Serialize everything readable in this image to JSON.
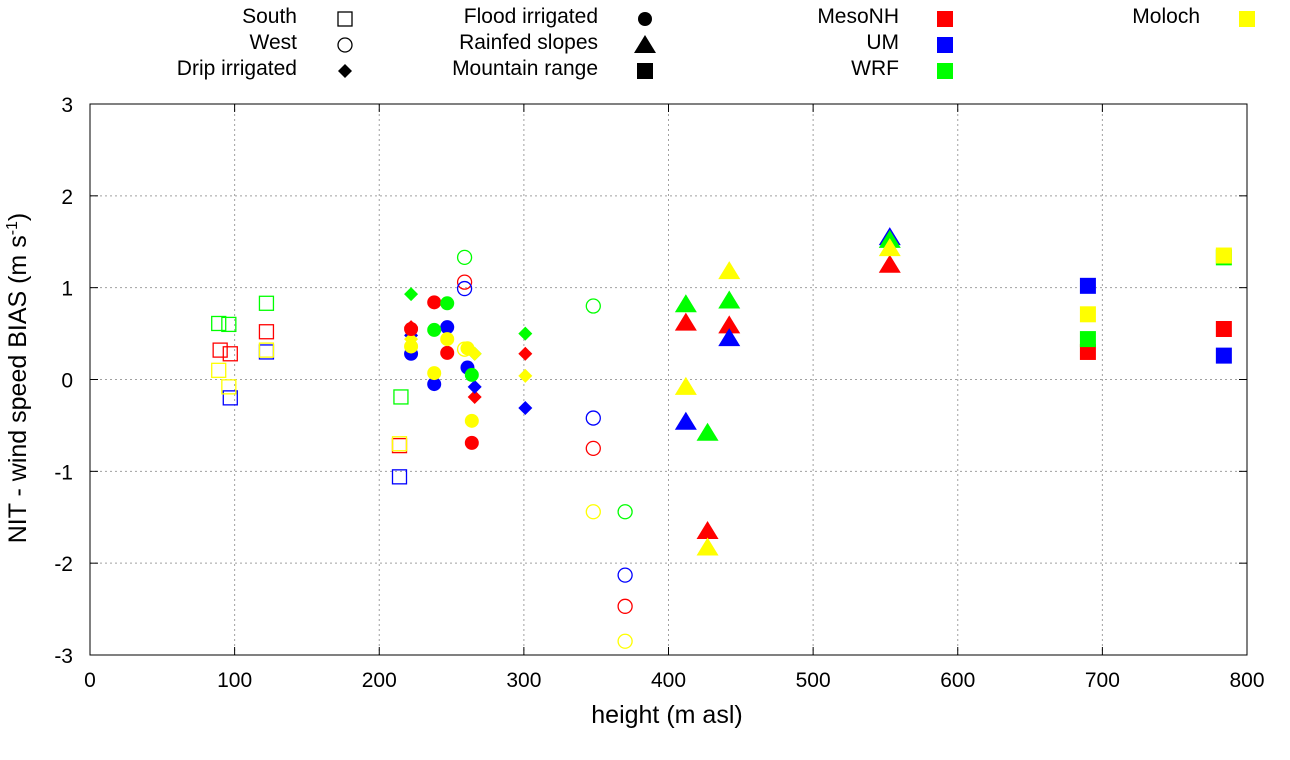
{
  "chart_data": {
    "type": "scatter",
    "title": "",
    "xlabel": "height (m asl)",
    "ylabel_main": "NIT - wind speed BIAS (m s",
    "ylabel_sup": "-1",
    "ylabel_end": ")",
    "xlim": [
      0,
      800
    ],
    "ylim": [
      -3,
      3
    ],
    "xticks": [
      0,
      100,
      200,
      300,
      400,
      500,
      600,
      700,
      800
    ],
    "yticks": [
      -3,
      -2,
      -1,
      0,
      1,
      2,
      3
    ],
    "grid": true,
    "colors": {
      "MesoNH": "#ff0000",
      "UM": "#0000ff",
      "WRF": "#00ff00",
      "Moloch": "#ffff00",
      "legend_black": "#000000"
    },
    "legend_shapes": [
      {
        "label": "South",
        "shape": "open-square"
      },
      {
        "label": "West",
        "shape": "open-circle"
      },
      {
        "label": "Drip irrigated",
        "shape": "filled-diamond"
      },
      {
        "label": "Flood irrigated",
        "shape": "filled-circle"
      },
      {
        "label": "Rainfed slopes",
        "shape": "filled-triangle"
      },
      {
        "label": "Mountain range",
        "shape": "filled-square"
      }
    ],
    "legend_models": [
      {
        "label": "MesoNH",
        "color": "#ff0000"
      },
      {
        "label": "UM",
        "color": "#0000ff"
      },
      {
        "label": "WRF",
        "color": "#00ff00"
      },
      {
        "label": "Moloch",
        "color": "#ffff00"
      }
    ],
    "series": [
      {
        "model": "MesoNH",
        "site": "South",
        "marker": "open-square",
        "x": [
          90,
          97,
          122,
          214
        ],
        "y": [
          0.32,
          0.28,
          0.52,
          -0.72
        ]
      },
      {
        "model": "UM",
        "site": "South",
        "marker": "open-square",
        "x": [
          97,
          122,
          214
        ],
        "y": [
          -0.2,
          0.3,
          -1.06
        ]
      },
      {
        "model": "WRF",
        "site": "South",
        "marker": "open-square",
        "x": [
          89,
          96,
          122,
          215
        ],
        "y": [
          0.61,
          0.6,
          0.83,
          -0.19
        ]
      },
      {
        "model": "Moloch",
        "site": "South",
        "marker": "open-square",
        "x": [
          89,
          96,
          122,
          214
        ],
        "y": [
          0.1,
          -0.08,
          0.32,
          -0.7
        ]
      },
      {
        "model": "MesoNH",
        "site": "West",
        "marker": "open-circle",
        "x": [
          259,
          348,
          370
        ],
        "y": [
          1.06,
          -0.75,
          -2.47
        ]
      },
      {
        "model": "UM",
        "site": "West",
        "marker": "open-circle",
        "x": [
          259,
          348,
          370
        ],
        "y": [
          0.99,
          -0.42,
          -2.13
        ]
      },
      {
        "model": "WRF",
        "site": "West",
        "marker": "open-circle",
        "x": [
          259,
          348,
          370
        ],
        "y": [
          1.33,
          0.8,
          -1.44
        ]
      },
      {
        "model": "Moloch",
        "site": "West",
        "marker": "open-circle",
        "x": [
          259,
          348,
          370
        ],
        "y": [
          0.33,
          -1.44,
          -2.85
        ]
      },
      {
        "model": "MesoNH",
        "site": "Drip irrigated",
        "marker": "filled-diamond",
        "x": [
          222,
          266,
          301
        ],
        "y": [
          0.57,
          -0.19,
          0.28
        ]
      },
      {
        "model": "UM",
        "site": "Drip irrigated",
        "marker": "filled-diamond",
        "x": [
          222,
          266,
          301
        ],
        "y": [
          0.48,
          -0.08,
          -0.31
        ]
      },
      {
        "model": "WRF",
        "site": "Drip irrigated",
        "marker": "filled-diamond",
        "x": [
          222,
          266,
          301
        ],
        "y": [
          0.93,
          0.28,
          0.5
        ]
      },
      {
        "model": "Moloch",
        "site": "Drip irrigated",
        "marker": "filled-diamond",
        "x": [
          222,
          266,
          301
        ],
        "y": [
          0.44,
          0.28,
          0.04
        ]
      },
      {
        "model": "MesoNH",
        "site": "Flood irrigated",
        "marker": "filled-circle",
        "x": [
          222,
          238,
          247,
          264
        ],
        "y": [
          0.55,
          0.84,
          0.29,
          -0.69
        ]
      },
      {
        "model": "UM",
        "site": "Flood irrigated",
        "marker": "filled-circle",
        "x": [
          222,
          238,
          247,
          261
        ],
        "y": [
          0.28,
          -0.05,
          0.57,
          0.13
        ]
      },
      {
        "model": "WRF",
        "site": "Flood irrigated",
        "marker": "filled-circle",
        "x": [
          238,
          247,
          264
        ],
        "y": [
          0.54,
          0.83,
          0.05
        ]
      },
      {
        "model": "Moloch",
        "site": "Flood irrigated",
        "marker": "filled-circle",
        "x": [
          222,
          238,
          247,
          261,
          264
        ],
        "y": [
          0.36,
          0.07,
          0.44,
          0.34,
          -0.45
        ]
      },
      {
        "model": "MesoNH",
        "site": "Rainfed slopes",
        "marker": "filled-triangle",
        "x": [
          412,
          442,
          427,
          553
        ],
        "y": [
          0.62,
          0.59,
          -1.65,
          1.25
        ]
      },
      {
        "model": "UM",
        "site": "Rainfed slopes",
        "marker": "filled-triangle",
        "x": [
          412,
          442,
          553
        ],
        "y": [
          -0.46,
          0.45,
          1.55
        ]
      },
      {
        "model": "WRF",
        "site": "Rainfed slopes",
        "marker": "filled-triangle",
        "x": [
          412,
          442,
          427,
          553
        ],
        "y": [
          0.82,
          0.86,
          -0.58,
          1.52
        ]
      },
      {
        "model": "Moloch",
        "site": "Rainfed slopes",
        "marker": "filled-triangle",
        "x": [
          412,
          442,
          427,
          553
        ],
        "y": [
          -0.08,
          1.18,
          -1.83,
          1.43
        ]
      },
      {
        "model": "MesoNH",
        "site": "Mountain range",
        "marker": "filled-square",
        "x": [
          690,
          784
        ],
        "y": [
          0.3,
          0.55
        ]
      },
      {
        "model": "UM",
        "site": "Mountain range",
        "marker": "filled-square",
        "x": [
          690,
          784
        ],
        "y": [
          1.02,
          0.26
        ]
      },
      {
        "model": "WRF",
        "site": "Mountain range",
        "marker": "filled-square",
        "x": [
          690,
          784
        ],
        "y": [
          0.44,
          1.33
        ]
      },
      {
        "model": "Moloch",
        "site": "Mountain range",
        "marker": "filled-square",
        "x": [
          690,
          784
        ],
        "y": [
          0.71,
          1.35
        ]
      }
    ]
  }
}
